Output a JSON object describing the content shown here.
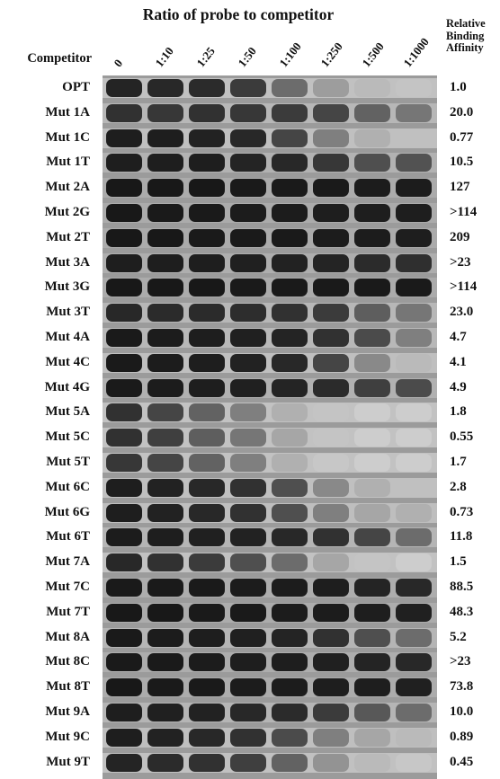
{
  "figure": {
    "ratio_title": "Ratio of probe to competitor",
    "competitor_header": "Competitor",
    "affinity_header": [
      "Relative",
      "Binding",
      "Affinity"
    ],
    "lanes": [
      "0",
      "1:10",
      "1:25",
      "1:50",
      "1:100",
      "1:250",
      "1:500",
      "1:1000"
    ],
    "rows": [
      {
        "name": "OPT",
        "affinity": "1.0",
        "bands": [
          0.92,
          0.9,
          0.88,
          0.8,
          0.55,
          0.3,
          0.15,
          0.1
        ]
      },
      {
        "name": "Mut 1A",
        "affinity": "20.0",
        "bands": [
          0.85,
          0.82,
          0.85,
          0.82,
          0.8,
          0.75,
          0.6,
          0.5
        ]
      },
      {
        "name": "Mut 1C",
        "affinity": "0.77",
        "bands": [
          0.95,
          0.95,
          0.93,
          0.9,
          0.75,
          0.45,
          0.2,
          0.12
        ]
      },
      {
        "name": "Mut 1T",
        "affinity": "10.5",
        "bands": [
          0.95,
          0.95,
          0.95,
          0.92,
          0.9,
          0.82,
          0.7,
          0.68
        ]
      },
      {
        "name": "Mut 2A",
        "affinity": "127",
        "bands": [
          0.98,
          0.98,
          0.98,
          0.97,
          0.97,
          0.97,
          0.96,
          0.96
        ]
      },
      {
        "name": "Mut 2G",
        "affinity": ">114",
        "bands": [
          0.98,
          0.97,
          0.97,
          0.96,
          0.96,
          0.95,
          0.95,
          0.95
        ]
      },
      {
        "name": "Mut 2T",
        "affinity": "209",
        "bands": [
          0.98,
          0.98,
          0.97,
          0.97,
          0.97,
          0.96,
          0.96,
          0.95
        ]
      },
      {
        "name": "Mut 3A",
        "affinity": ">23",
        "bands": [
          0.95,
          0.95,
          0.95,
          0.94,
          0.93,
          0.92,
          0.88,
          0.86
        ]
      },
      {
        "name": "Mut 3G",
        "affinity": ">114",
        "bands": [
          0.98,
          0.98,
          0.98,
          0.97,
          0.97,
          0.97,
          0.97,
          0.97
        ]
      },
      {
        "name": "Mut 3T",
        "affinity": "23.0",
        "bands": [
          0.9,
          0.88,
          0.88,
          0.87,
          0.85,
          0.8,
          0.62,
          0.5
        ]
      },
      {
        "name": "Mut 4A",
        "affinity": "4.7",
        "bands": [
          0.97,
          0.96,
          0.95,
          0.94,
          0.92,
          0.85,
          0.72,
          0.45
        ]
      },
      {
        "name": "Mut 4C",
        "affinity": "4.1",
        "bands": [
          0.97,
          0.96,
          0.95,
          0.93,
          0.9,
          0.75,
          0.4,
          0.15
        ]
      },
      {
        "name": "Mut 4G",
        "affinity": "4.9",
        "bands": [
          0.97,
          0.96,
          0.95,
          0.94,
          0.92,
          0.88,
          0.78,
          0.72
        ]
      },
      {
        "name": "Mut 5A",
        "affinity": "1.8",
        "bands": [
          0.85,
          0.75,
          0.6,
          0.45,
          0.2,
          0.1,
          0.05,
          0.05
        ]
      },
      {
        "name": "Mut 5C",
        "affinity": "0.55",
        "bands": [
          0.85,
          0.78,
          0.62,
          0.5,
          0.25,
          0.1,
          0.05,
          0.05
        ]
      },
      {
        "name": "Mut 5T",
        "affinity": "1.7",
        "bands": [
          0.82,
          0.75,
          0.6,
          0.45,
          0.2,
          0.08,
          0.05,
          0.05
        ]
      },
      {
        "name": "Mut 6C",
        "affinity": "2.8",
        "bands": [
          0.95,
          0.93,
          0.9,
          0.85,
          0.7,
          0.4,
          0.2,
          0.12
        ]
      },
      {
        "name": "Mut 6G",
        "affinity": "0.73",
        "bands": [
          0.95,
          0.93,
          0.9,
          0.85,
          0.7,
          0.45,
          0.25,
          0.2
        ]
      },
      {
        "name": "Mut 6T",
        "affinity": "11.8",
        "bands": [
          0.96,
          0.95,
          0.94,
          0.93,
          0.9,
          0.85,
          0.75,
          0.55
        ]
      },
      {
        "name": "Mut 7A",
        "affinity": "1.5",
        "bands": [
          0.9,
          0.85,
          0.8,
          0.7,
          0.55,
          0.25,
          0.1,
          0.05
        ]
      },
      {
        "name": "Mut 7C",
        "affinity": "88.5",
        "bands": [
          0.97,
          0.97,
          0.97,
          0.96,
          0.96,
          0.95,
          0.92,
          0.9
        ]
      },
      {
        "name": "Mut 7T",
        "affinity": "48.3",
        "bands": [
          0.98,
          0.98,
          0.97,
          0.97,
          0.96,
          0.96,
          0.95,
          0.94
        ]
      },
      {
        "name": "Mut 8A",
        "affinity": "5.2",
        "bands": [
          0.97,
          0.96,
          0.95,
          0.94,
          0.92,
          0.85,
          0.7,
          0.55
        ]
      },
      {
        "name": "Mut 8C",
        "affinity": ">23",
        "bands": [
          0.97,
          0.97,
          0.96,
          0.95,
          0.95,
          0.94,
          0.92,
          0.9
        ]
      },
      {
        "name": "Mut 8T",
        "affinity": "73.8",
        "bands": [
          0.98,
          0.97,
          0.97,
          0.96,
          0.96,
          0.95,
          0.95,
          0.94
        ]
      },
      {
        "name": "Mut 9A",
        "affinity": "10.0",
        "bands": [
          0.95,
          0.94,
          0.93,
          0.9,
          0.88,
          0.8,
          0.65,
          0.55
        ]
      },
      {
        "name": "Mut 9C",
        "affinity": "0.89",
        "bands": [
          0.95,
          0.93,
          0.9,
          0.85,
          0.72,
          0.45,
          0.25,
          0.15
        ]
      },
      {
        "name": "Mut 9T",
        "affinity": "0.45",
        "bands": [
          0.92,
          0.88,
          0.85,
          0.78,
          0.6,
          0.35,
          0.15,
          0.08
        ]
      }
    ]
  }
}
